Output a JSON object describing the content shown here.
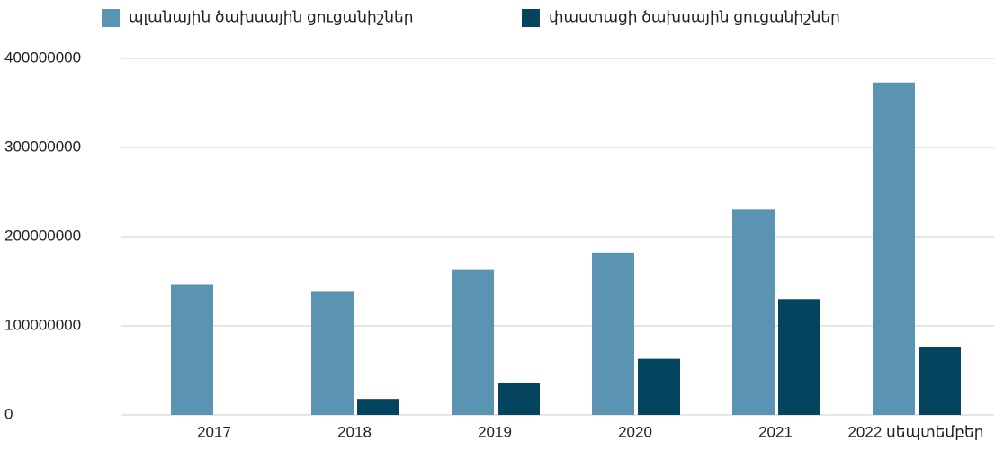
{
  "chart_data": {
    "type": "bar",
    "categories": [
      "2017",
      "2018",
      "2019",
      "2020",
      "2021",
      "2022 սեպտեմբեր"
    ],
    "series": [
      {
        "name": "պլանային ծախսային ցուցանիշներ",
        "color": "#5b93b3",
        "values": [
          146000000,
          139000000,
          163000000,
          182000000,
          231000000,
          373000000
        ]
      },
      {
        "name": "փաստացի ծախսային ցուցանիշներ",
        "color": "#04445e",
        "values": [
          0,
          18000000,
          36000000,
          63000000,
          130000000,
          76000000
        ]
      }
    ],
    "ylim": [
      0,
      400000000
    ],
    "yticks": [
      0,
      100000000,
      200000000,
      300000000,
      400000000
    ],
    "grid": true,
    "legend": "top"
  }
}
